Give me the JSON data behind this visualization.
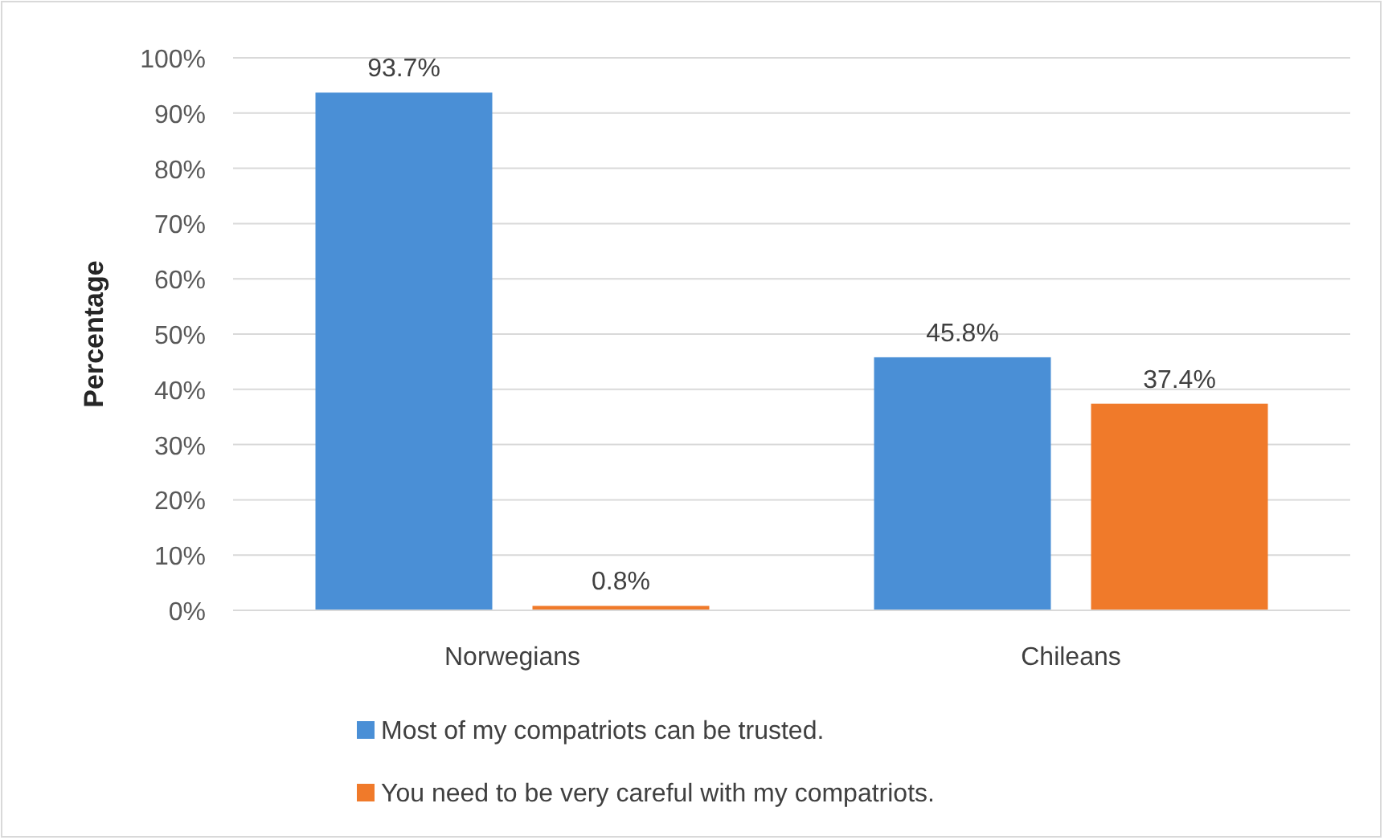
{
  "chart_data": {
    "type": "bar",
    "ylabel": "Percentage",
    "categories": [
      "Norwegians",
      "Chileans"
    ],
    "series": [
      {
        "name": "Most of my compatriots can be trusted.",
        "color": "#4a8fd6",
        "values": [
          93.7,
          45.8
        ],
        "value_labels": [
          "93.7%",
          "45.8%"
        ]
      },
      {
        "name": "You need to be very careful with my compatriots.",
        "color": "#f07a2a",
        "values": [
          0.8,
          37.4
        ],
        "value_labels": [
          "0.8%",
          "37.4%"
        ]
      }
    ],
    "ylim": [
      0,
      100
    ],
    "yticks": [
      {
        "value": 0,
        "label": "0%"
      },
      {
        "value": 10,
        "label": "10%"
      },
      {
        "value": 20,
        "label": "20%"
      },
      {
        "value": 30,
        "label": "30%"
      },
      {
        "value": 40,
        "label": "40%"
      },
      {
        "value": 50,
        "label": "50%"
      },
      {
        "value": 60,
        "label": "60%"
      },
      {
        "value": 70,
        "label": "70%"
      },
      {
        "value": 80,
        "label": "80%"
      },
      {
        "value": 90,
        "label": "90%"
      },
      {
        "value": 100,
        "label": "100%"
      }
    ],
    "grid": "y",
    "legend": "bottom"
  }
}
